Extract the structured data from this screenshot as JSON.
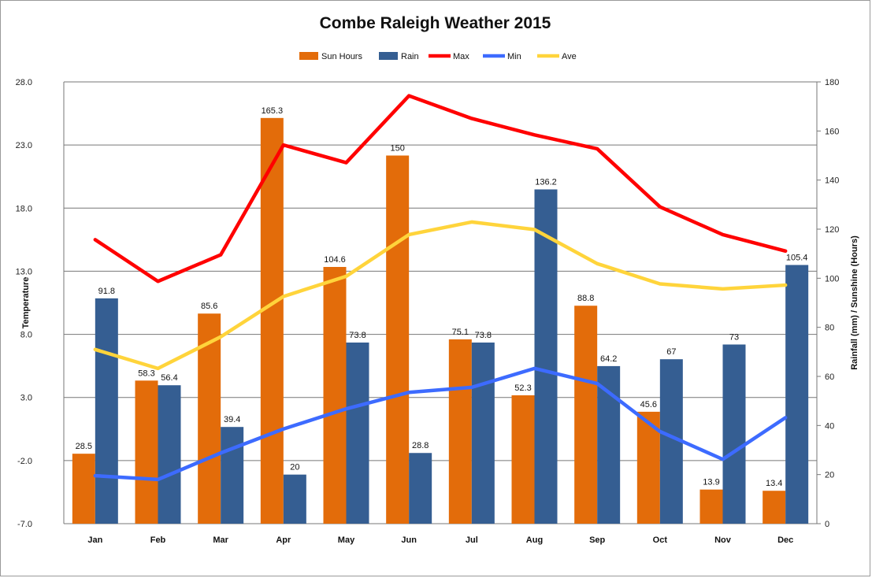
{
  "chart_data": {
    "type": "bar",
    "title": "Combe Raleigh Weather 2015",
    "categories": [
      "Jan",
      "Feb",
      "Mar",
      "Apr",
      "May",
      "Jun",
      "Jul",
      "Aug",
      "Sep",
      "Oct",
      "Nov",
      "Dec"
    ],
    "y_left": {
      "label": "Temperature",
      "min": -7,
      "max": 28,
      "ticks": [
        "28.0",
        "23.0",
        "18.0",
        "13.0",
        "8.0",
        "3.0",
        "-2.0",
        "-7.0"
      ]
    },
    "y_right": {
      "label": "Rainfall (mm) / Sunshine (Hours)",
      "min": 0,
      "max": 180,
      "ticks": [
        "180",
        "160",
        "140",
        "120",
        "100",
        "80",
        "60",
        "40",
        "20",
        "0"
      ]
    },
    "series": [
      {
        "name": "Sun Hours",
        "kind": "bar",
        "axis": "right",
        "color": "#E36C0A",
        "values": [
          28.5,
          58.3,
          85.6,
          165.3,
          104.6,
          150,
          75.1,
          52.3,
          88.8,
          45.6,
          13.9,
          13.4
        ],
        "labels": [
          "28.5",
          "58.3",
          "85.6",
          "165.3",
          "104.6",
          "150",
          "75.1",
          "52.3",
          "88.8",
          "45.6",
          "13.9",
          "13.4"
        ]
      },
      {
        "name": "Rain",
        "kind": "bar",
        "axis": "right",
        "color": "#355E92",
        "values": [
          91.8,
          56.4,
          39.4,
          20,
          73.8,
          28.8,
          73.8,
          136.2,
          64.2,
          67,
          73,
          105.4
        ],
        "labels": [
          "91.8",
          "56.4",
          "39.4",
          "20",
          "73.8",
          "28.8",
          "73.8",
          "136.2",
          "64.2",
          "67",
          "73",
          "105.4"
        ]
      },
      {
        "name": "Max",
        "kind": "line",
        "axis": "left",
        "color": "#FF0000",
        "values": [
          15.5,
          12.2,
          14.3,
          23.0,
          21.6,
          26.9,
          25.1,
          23.8,
          22.7,
          18.1,
          15.9,
          14.6
        ]
      },
      {
        "name": "Min",
        "kind": "line",
        "axis": "left",
        "color": "#3D6BFF",
        "values": [
          -3.2,
          -3.5,
          -1.4,
          0.5,
          2.1,
          3.4,
          3.8,
          5.3,
          4.1,
          0.3,
          -1.9,
          1.4
        ]
      },
      {
        "name": "Ave",
        "kind": "line",
        "axis": "left",
        "color": "#FFD43B",
        "values": [
          6.8,
          5.3,
          7.8,
          11.0,
          12.6,
          15.9,
          16.9,
          16.3,
          13.6,
          12.0,
          11.6,
          11.9
        ]
      }
    ],
    "legend_position": "top",
    "grid": true
  }
}
